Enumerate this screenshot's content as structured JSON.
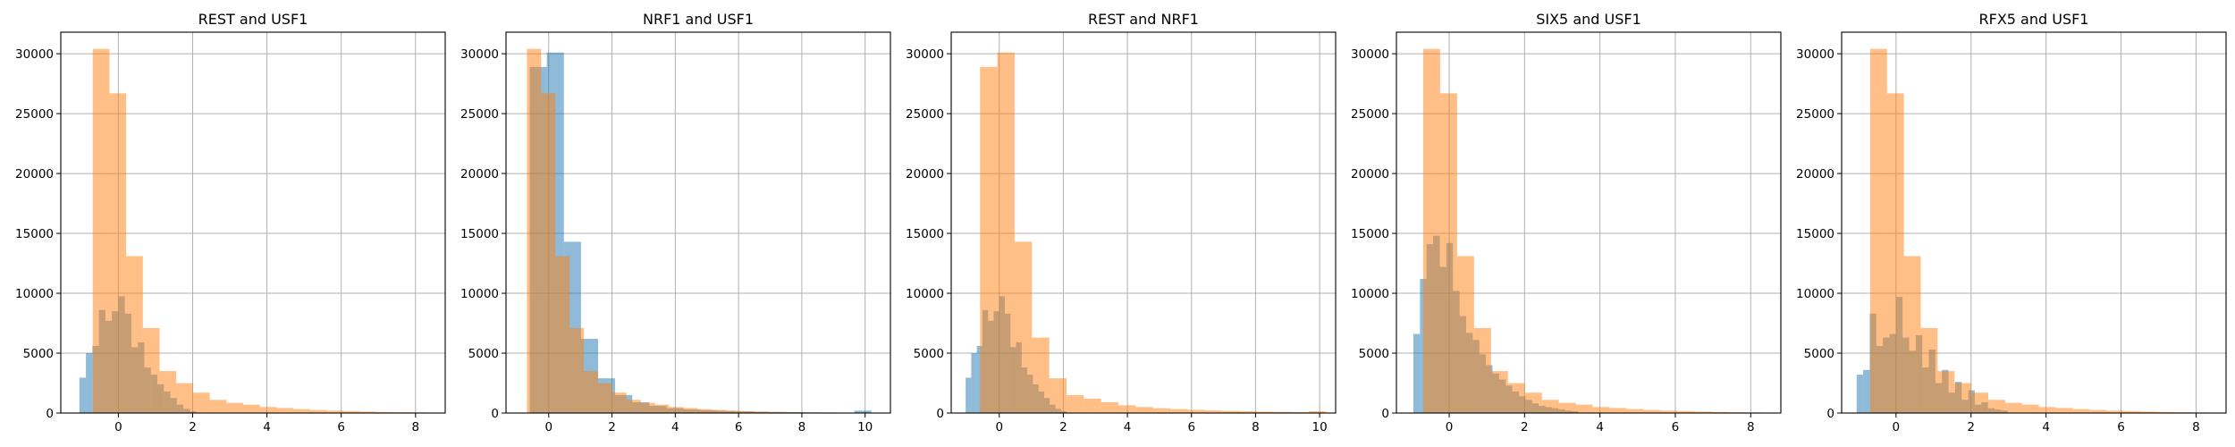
{
  "colors": {
    "series_blue": "#1f77b4",
    "series_orange": "#ff7f0e",
    "bar_alpha": 0.5,
    "grid": "#b0b0b0"
  },
  "chart_data": [
    {
      "type": "bar",
      "title": "REST and USF1",
      "xlim": [
        -1.55,
        8.8
      ],
      "ylim": [
        0,
        31800
      ],
      "xticks": [
        0,
        2,
        4,
        6,
        8
      ],
      "yticks": [
        0,
        5000,
        10000,
        15000,
        20000,
        25000,
        30000
      ],
      "grid": true,
      "series": [
        {
          "bin_start": -1.05,
          "bin_width": 0.175,
          "values": [
            2950,
            5000,
            5600,
            8600,
            7700,
            8500,
            9750,
            8300,
            5500,
            5900,
            3800,
            3200,
            2400,
            1800,
            1250,
            700,
            350,
            150
          ]
        },
        {
          "bin_start": -0.69,
          "bin_width": 0.45,
          "values": [
            30400,
            26700,
            13100,
            7100,
            3500,
            2500,
            1700,
            1100,
            850,
            700,
            500,
            420,
            330,
            260,
            200,
            160,
            120,
            90,
            70,
            50
          ]
        }
      ]
    },
    {
      "type": "bar",
      "title": "NRF1 and USF1",
      "xlim": [
        -1.35,
        10.8
      ],
      "ylim": [
        0,
        31800
      ],
      "xticks": [
        0,
        2,
        4,
        6,
        8,
        10
      ],
      "yticks": [
        0,
        5000,
        10000,
        15000,
        20000,
        25000,
        30000
      ],
      "grid": true,
      "series": [
        {
          "bin_start": -0.6,
          "bin_width": 0.54,
          "values": [
            28900,
            30100,
            14300,
            6200,
            2900,
            1500,
            900,
            600,
            400,
            300,
            230,
            180,
            140,
            110,
            90,
            70,
            55,
            45,
            35,
            200
          ]
        },
        {
          "bin_start": -0.69,
          "bin_width": 0.45,
          "values": [
            30400,
            26700,
            13100,
            7100,
            3500,
            2500,
            1700,
            1100,
            850,
            700,
            500,
            420,
            330,
            260,
            200,
            160,
            120,
            90,
            70,
            50
          ]
        }
      ]
    },
    {
      "type": "bar",
      "title": "REST and NRF1",
      "xlim": [
        -1.5,
        10.5
      ],
      "ylim": [
        0,
        31800
      ],
      "xticks": [
        0,
        2,
        4,
        6,
        8,
        10
      ],
      "yticks": [
        0,
        5000,
        10000,
        15000,
        20000,
        25000,
        30000
      ],
      "grid": true,
      "series": [
        {
          "bin_start": -1.05,
          "bin_width": 0.175,
          "values": [
            2950,
            5000,
            5600,
            8600,
            7700,
            8500,
            9750,
            8300,
            5500,
            5900,
            3800,
            3200,
            2400,
            1800,
            1250,
            700,
            350,
            150
          ]
        },
        {
          "bin_start": -0.6,
          "bin_width": 0.54,
          "values": [
            28900,
            30100,
            14300,
            6300,
            2900,
            1500,
            1200,
            900,
            650,
            500,
            400,
            330,
            270,
            220,
            180,
            150,
            120,
            100,
            80,
            150
          ]
        }
      ]
    },
    {
      "type": "bar",
      "title": "SIX5 and USF1",
      "xlim": [
        -1.4,
        8.8
      ],
      "ylim": [
        0,
        31800
      ],
      "xticks": [
        0,
        2,
        4,
        6,
        8
      ],
      "yticks": [
        0,
        5000,
        10000,
        15000,
        20000,
        25000,
        30000
      ],
      "grid": true,
      "series": [
        {
          "bin_start": -0.95,
          "bin_width": 0.175,
          "values": [
            6600,
            11200,
            14100,
            14800,
            12200,
            14200,
            10200,
            8100,
            6700,
            6100,
            4900,
            4000,
            3300,
            2800,
            2300,
            1800,
            1400,
            1100,
            800,
            600,
            500,
            400,
            300,
            200,
            150
          ]
        },
        {
          "bin_start": -0.69,
          "bin_width": 0.45,
          "values": [
            30400,
            26700,
            13100,
            7100,
            3500,
            2500,
            1700,
            1100,
            850,
            700,
            500,
            420,
            330,
            260,
            200,
            160,
            120,
            90,
            70,
            50
          ]
        }
      ]
    },
    {
      "type": "bar",
      "title": "RFX5 and USF1",
      "xlim": [
        -1.45,
        8.8
      ],
      "ylim": [
        0,
        31800
      ],
      "xticks": [
        0,
        2,
        4,
        6,
        8
      ],
      "yticks": [
        0,
        5000,
        10000,
        15000,
        20000,
        25000,
        30000
      ],
      "grid": true,
      "series": [
        {
          "bin_start": -1.05,
          "bin_width": 0.175,
          "values": [
            3200,
            3600,
            8300,
            5600,
            6300,
            6600,
            9700,
            6300,
            5200,
            6500,
            3800,
            5300,
            2500,
            3600,
            1700,
            2600,
            1100,
            1900,
            700,
            900,
            400,
            300,
            200
          ]
        },
        {
          "bin_start": -0.69,
          "bin_width": 0.45,
          "values": [
            30400,
            26700,
            13100,
            7100,
            3500,
            2500,
            1700,
            1100,
            850,
            700,
            500,
            420,
            330,
            260,
            200,
            160,
            120,
            90,
            70,
            50
          ]
        }
      ]
    }
  ]
}
